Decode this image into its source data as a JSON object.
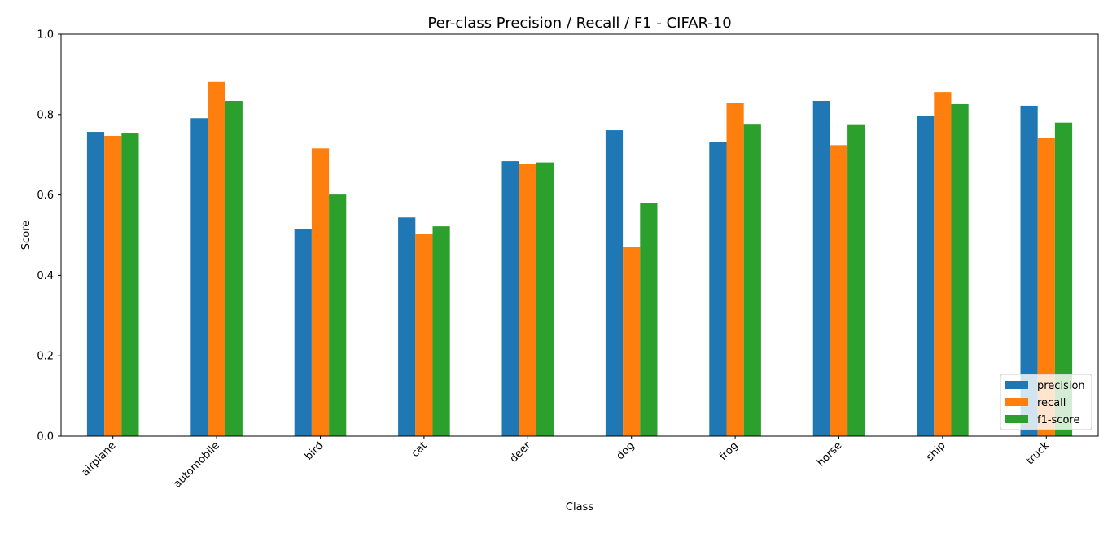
{
  "chart_data": {
    "type": "bar",
    "title": "Per-class Precision / Recall / F1 - CIFAR-10",
    "xlabel": "Class",
    "ylabel": "Score",
    "ylim": [
      0,
      1.0
    ],
    "yticks": [
      "0.0",
      "0.2",
      "0.4",
      "0.6",
      "0.8",
      "1.0"
    ],
    "categories": [
      "airplane",
      "automobile",
      "bird",
      "cat",
      "deer",
      "dog",
      "frog",
      "horse",
      "ship",
      "truck"
    ],
    "series": [
      {
        "name": "precision",
        "color": "#1f77b4",
        "values": [
          0.757,
          0.791,
          0.515,
          0.544,
          0.684,
          0.761,
          0.731,
          0.834,
          0.797,
          0.822
        ]
      },
      {
        "name": "recall",
        "color": "#ff7f0e",
        "values": [
          0.747,
          0.881,
          0.716,
          0.503,
          0.678,
          0.471,
          0.828,
          0.724,
          0.856,
          0.741
        ]
      },
      {
        "name": "f1-score",
        "color": "#2ca02c",
        "values": [
          0.753,
          0.834,
          0.601,
          0.522,
          0.681,
          0.58,
          0.777,
          0.776,
          0.826,
          0.78
        ]
      }
    ],
    "legend_position": "lower-right",
    "grid": false
  }
}
